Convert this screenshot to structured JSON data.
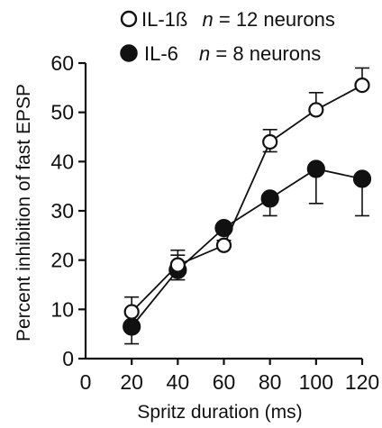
{
  "chart_data": {
    "type": "line",
    "title": "",
    "xlabel": "Spritz duration (ms)",
    "ylabel": "Percent inhibition of fast EPSP",
    "xlim": [
      0,
      120
    ],
    "ylim": [
      0,
      60
    ],
    "xticks": [
      0,
      20,
      40,
      60,
      80,
      100,
      120
    ],
    "yticks": [
      0,
      10,
      20,
      30,
      40,
      50,
      60
    ],
    "grid": false,
    "legend_position": "top",
    "series": [
      {
        "name": "IL-1ß",
        "legend_n_symbol": "n",
        "legend_n_text": " = 12 neurons",
        "marker": "open-circle",
        "x": [
          20,
          40,
          60,
          80,
          100,
          120
        ],
        "y": [
          9.5,
          19,
          23,
          44,
          50.5,
          55.5
        ],
        "err_up": [
          3,
          3,
          1,
          2.5,
          3.5,
          3.5
        ],
        "err_down": [
          0,
          0,
          0,
          2,
          0,
          0
        ]
      },
      {
        "name": "IL-6",
        "legend_n_symbol": "n",
        "legend_n_text": " = 8 neurons",
        "marker": "filled-circle",
        "x": [
          20,
          40,
          60,
          80,
          100,
          120
        ],
        "y": [
          6.5,
          18,
          26.5,
          32.5,
          38.5,
          36.5
        ],
        "err_up": [
          0,
          3,
          0,
          0,
          0,
          0
        ],
        "err_down": [
          3.5,
          2,
          0,
          3.5,
          7,
          7.5
        ]
      }
    ]
  }
}
